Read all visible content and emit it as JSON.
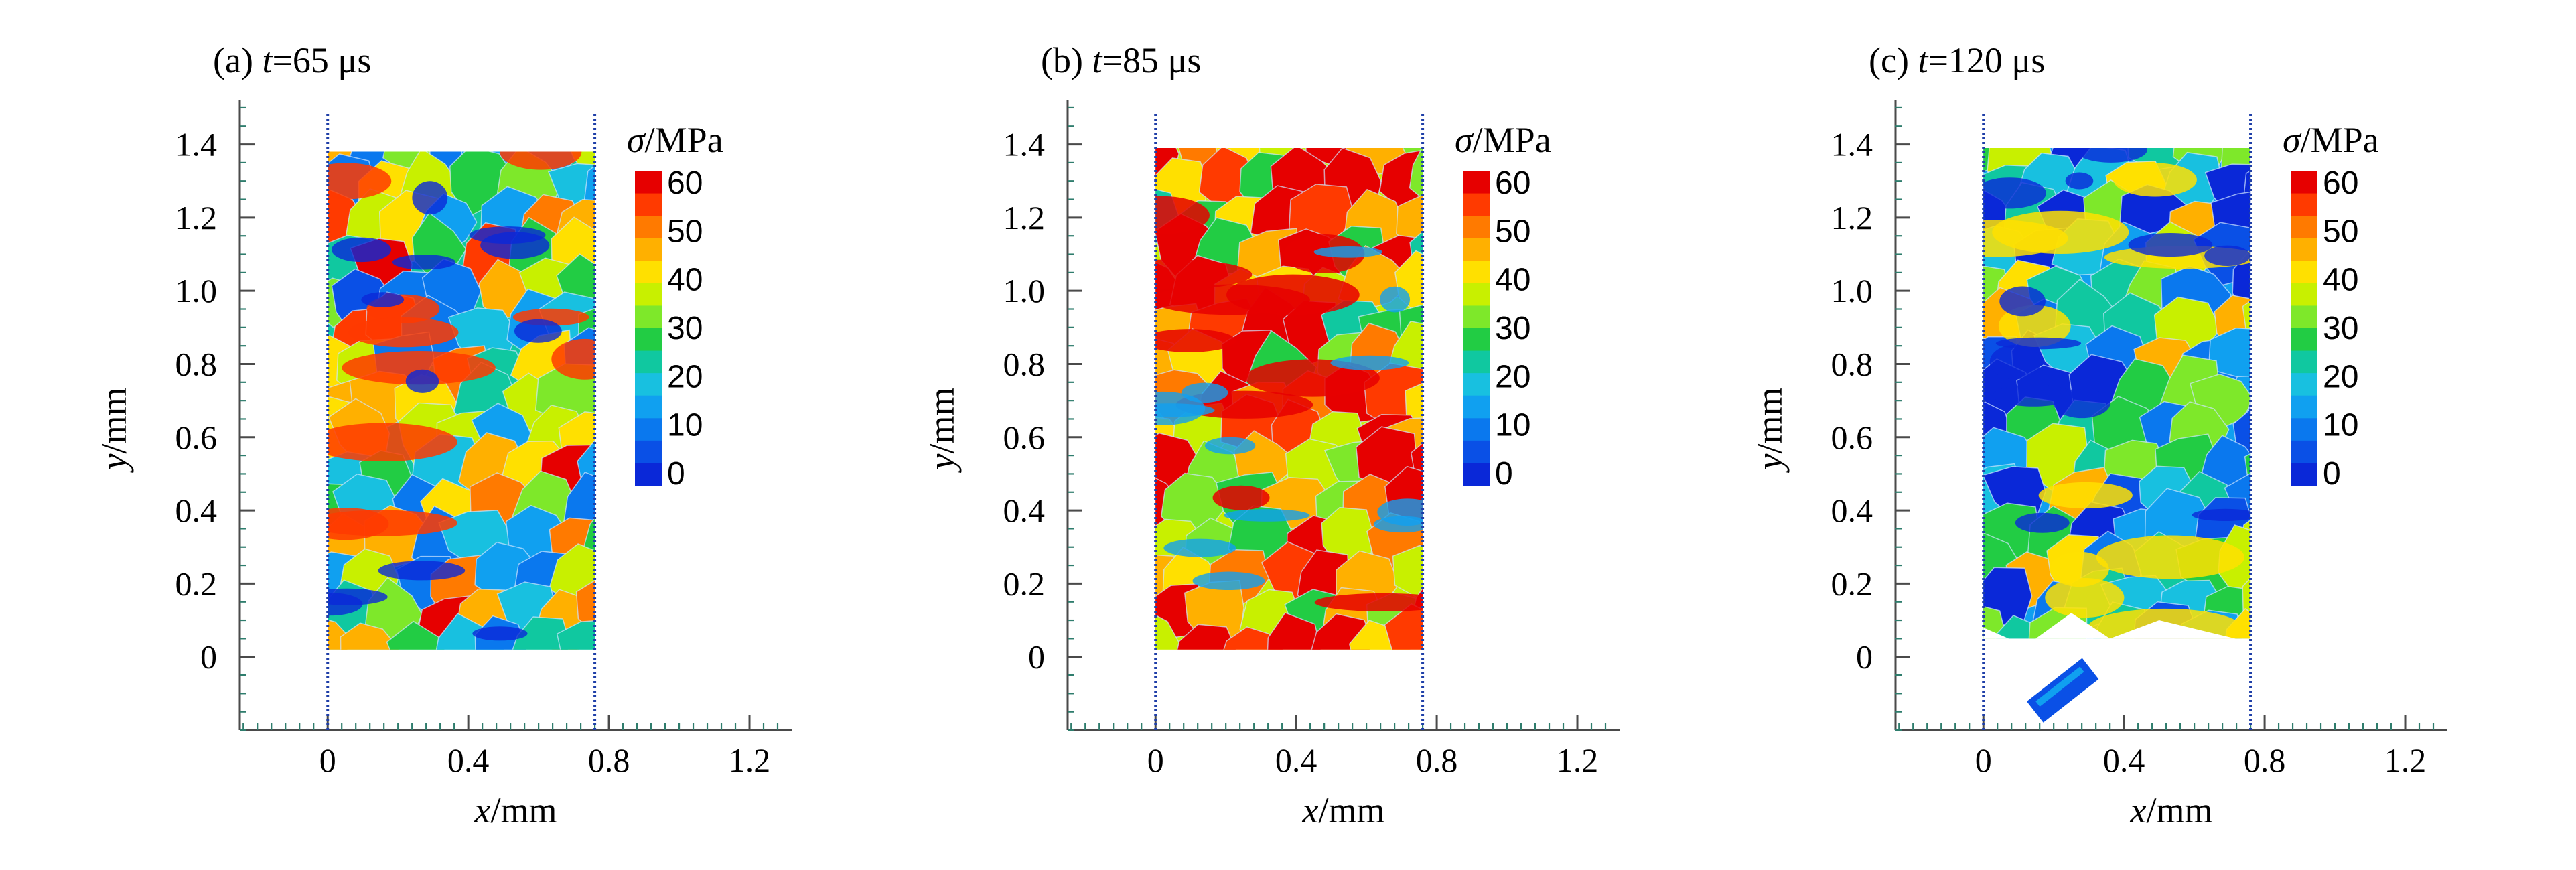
{
  "chart_data": [
    {
      "type": "heatmap",
      "panel_label": "(a) ",
      "time_var": "t",
      "time_value": "=65 μs",
      "xlabel_var": "x",
      "xlabel_unit": "/mm",
      "ylabel_var": "y",
      "ylabel_unit": "/mm",
      "xlim": [
        -0.25,
        1.32
      ],
      "ylim": [
        -0.2,
        1.52
      ],
      "x_ticks": [
        "0",
        "0.4",
        "0.8",
        "1.2"
      ],
      "y_ticks": [
        "0",
        "0.2",
        "0.4",
        "0.6",
        "0.8",
        "1.0",
        "1.2",
        "1.4"
      ],
      "specimen": {
        "x": [
          0,
          0.76
        ],
        "y": [
          0.02,
          1.38
        ]
      },
      "state": "intact",
      "stress_level": 0.55,
      "colorbar": {
        "title_var": "σ",
        "title_unit": "/MPa",
        "ticks": [
          "60",
          "50",
          "40",
          "30",
          "20",
          "10",
          "0"
        ],
        "min": 0,
        "max": 60
      }
    },
    {
      "type": "heatmap",
      "panel_label": "(b) ",
      "time_var": "t",
      "time_value": "=85 μs",
      "xlabel_var": "x",
      "xlabel_unit": "/mm",
      "ylabel_var": "y",
      "ylabel_unit": "/mm",
      "xlim": [
        -0.25,
        1.32
      ],
      "ylim": [
        -0.2,
        1.52
      ],
      "x_ticks": [
        "0",
        "0.4",
        "0.8",
        "1.2"
      ],
      "y_ticks": [
        "0",
        "0.2",
        "0.4",
        "0.6",
        "0.8",
        "1.0",
        "1.2",
        "1.4"
      ],
      "specimen": {
        "x": [
          0,
          0.76
        ],
        "y": [
          0.02,
          1.39
        ]
      },
      "state": "intact",
      "stress_level": 0.85,
      "colorbar": {
        "title_var": "σ",
        "title_unit": "/MPa",
        "ticks": [
          "60",
          "50",
          "40",
          "30",
          "20",
          "10",
          "0"
        ],
        "min": 0,
        "max": 60
      }
    },
    {
      "type": "heatmap",
      "panel_label": "(c) ",
      "time_var": "t",
      "time_value": "=120 μs",
      "xlabel_var": "x",
      "xlabel_unit": "/mm",
      "ylabel_var": "y",
      "ylabel_unit": "/mm",
      "xlim": [
        -0.25,
        1.32
      ],
      "ylim": [
        -0.2,
        1.52
      ],
      "x_ticks": [
        "0",
        "0.4",
        "0.8",
        "1.2"
      ],
      "y_ticks": [
        "0",
        "0.2",
        "0.4",
        "0.6",
        "0.8",
        "1.0",
        "1.2",
        "1.4"
      ],
      "specimen": {
        "x": [
          0,
          0.76
        ],
        "y": [
          0.05,
          1.39
        ]
      },
      "state": "fractured",
      "stress_level": 0.32,
      "colorbar": {
        "title_var": "σ",
        "title_unit": "/MPa",
        "ticks": [
          "60",
          "50",
          "40",
          "30",
          "20",
          "10",
          "0"
        ],
        "min": 0,
        "max": 60
      }
    }
  ]
}
